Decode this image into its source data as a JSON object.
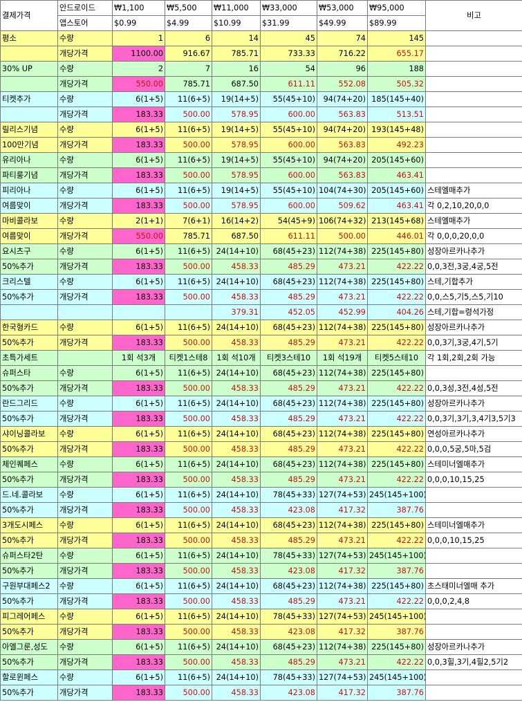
{
  "header": {
    "label": "결제가격",
    "android_label": "안드로이드",
    "appstore_label": "앱스토어",
    "note_label": "비고",
    "won": [
      "₩1,100",
      "₩5,500",
      "₩11,000",
      "₩33,000",
      "₩53,000",
      "₩95,000"
    ],
    "usd": [
      "$0.99",
      "$4.99",
      "$10.99",
      "$31.99",
      "$49.99",
      "$89.99"
    ]
  },
  "colors": {
    "yellow": "#ffff99",
    "green": "#ccffcc",
    "cyan": "#ccffff",
    "pink": "#ff66cc",
    "red_text": "#cc1111"
  },
  "rows": [
    {
      "a": "평소",
      "b": "수량",
      "bg": "y",
      "v": [
        "1",
        "6",
        "14",
        "45",
        "74",
        "145"
      ],
      "red": [
        false,
        false,
        false,
        false,
        false,
        false
      ],
      "note": ""
    },
    {
      "a": "",
      "b": "개당가격",
      "bg": "y",
      "v": [
        "1100.00",
        "916.67",
        "785.71",
        "733.33",
        "716.22",
        "655.17"
      ],
      "red": [
        false,
        false,
        false,
        false,
        false,
        true
      ],
      "note": ""
    },
    {
      "a": "30% UP",
      "b": "수량",
      "bg": "g",
      "v": [
        "2",
        "7",
        "16",
        "54",
        "96",
        "188"
      ],
      "red": [
        false,
        false,
        false,
        false,
        false,
        false
      ],
      "note": ""
    },
    {
      "a": "",
      "b": "개당가격",
      "bg": "g",
      "v": [
        "550.00",
        "785.71",
        "687.50",
        "611.11",
        "552.08",
        "505.32"
      ],
      "red": [
        true,
        false,
        false,
        true,
        true,
        true
      ],
      "note": ""
    },
    {
      "a": "티켓추가",
      "b": "수량",
      "bg": "c",
      "v": [
        "6(1+5)",
        "11(6+5)",
        "19(14+5)",
        "55(45+10)",
        "94(74+20)",
        "185(145+40)"
      ],
      "red": [
        false,
        false,
        false,
        false,
        false,
        false
      ],
      "note": ""
    },
    {
      "a": "",
      "b": "개당가격",
      "bg": "c",
      "v": [
        "183.33",
        "500.00",
        "578.95",
        "600.00",
        "563.83",
        "513.51"
      ],
      "red": [
        false,
        true,
        true,
        true,
        true,
        true
      ],
      "note": ""
    },
    {
      "a": "릴리스기념",
      "b": "수량",
      "bg": "y",
      "v": [
        "6(1+5)",
        "11(6+5)",
        "19(14+5)",
        "55(45+10)",
        "94(74+20)",
        "193(145+48)"
      ],
      "red": [
        false,
        false,
        false,
        false,
        false,
        false
      ],
      "note": ""
    },
    {
      "a": "100만기념",
      "b": "개당가격",
      "bg": "y",
      "v": [
        "183.33",
        "500.00",
        "578.95",
        "600.00",
        "563.83",
        "492.23"
      ],
      "red": [
        false,
        true,
        true,
        true,
        true,
        true
      ],
      "note": ""
    },
    {
      "a": "유리아나",
      "b": "수량",
      "bg": "g",
      "v": [
        "6(1+5)",
        "11(6+5)",
        "19(14+5)",
        "55(45+10)",
        "94(74+20)",
        "205(145+60)"
      ],
      "red": [
        false,
        false,
        false,
        false,
        false,
        false
      ],
      "note": ""
    },
    {
      "a": "파티룽기념",
      "b": "개당가격",
      "bg": "g",
      "v": [
        "183.33",
        "500.00",
        "578.95",
        "600.00",
        "563.83",
        "463.41"
      ],
      "red": [
        false,
        true,
        true,
        true,
        true,
        true
      ],
      "note": ""
    },
    {
      "a": "피리아나",
      "b": "수량",
      "bg": "c",
      "v": [
        "6(1+5)",
        "11(6+5)",
        "19(14+5)",
        "55(45+10)",
        "104(74+30)",
        "205(145+60)"
      ],
      "red": [
        false,
        false,
        false,
        false,
        false,
        false
      ],
      "note": "스테엘매추가"
    },
    {
      "a": "여름맞이",
      "b": "개당가격",
      "bg": "c",
      "v": [
        "183.33",
        "500.00",
        "578.95",
        "600.00",
        "509.62",
        "463.41"
      ],
      "red": [
        false,
        true,
        true,
        true,
        true,
        true
      ],
      "note": "각 0,2,10,20,0,0"
    },
    {
      "a": "마비콜라보",
      "b": "수량",
      "bg": "y",
      "v": [
        "2(1+1)",
        "7(6+1)",
        "16(14+2)",
        "54(45+9)",
        "106(74+32)",
        "213(145+68)"
      ],
      "red": [
        false,
        false,
        false,
        false,
        false,
        false
      ],
      "note": "스테엘매추가"
    },
    {
      "a": "여름맞이",
      "b": "개당가격",
      "bg": "y",
      "v": [
        "550.00",
        "785.71",
        "687.50",
        "611.11",
        "500.00",
        "446.01"
      ],
      "red": [
        true,
        false,
        false,
        true,
        true,
        true
      ],
      "note": "각 0,0,0,20,0,0"
    },
    {
      "a": "요시츠구",
      "b": "수량",
      "bg": "g",
      "v": [
        "6(1+5)",
        "11(6+5)",
        "24(14+10)",
        "68(45+23)",
        "112(74+38)",
        "225(145+80)"
      ],
      "red": [
        false,
        false,
        false,
        false,
        false,
        false
      ],
      "note": "성장아르카나추가"
    },
    {
      "a": "50%추가",
      "b": "개당가격",
      "bg": "g",
      "v": [
        "183.33",
        "500.00",
        "458.33",
        "485.29",
        "473.21",
        "422.22"
      ],
      "red": [
        false,
        true,
        true,
        true,
        true,
        true
      ],
      "note": "0,0,3전,3궁,4궁,5전"
    },
    {
      "a": "크리스텔",
      "b": "수량",
      "bg": "c",
      "v": [
        "6(1+5)",
        "11(6+5)",
        "24(14+10)",
        "68(45+23)",
        "112(74+38)",
        "225(145+80)"
      ],
      "red": [
        false,
        false,
        false,
        false,
        false,
        false
      ],
      "note": "스테,기합추가"
    },
    {
      "a": "50%추가",
      "b": "개당가격",
      "bg": "c",
      "v": [
        "183.33",
        "500.00",
        "458.33",
        "485.29",
        "473.21",
        "422.22"
      ],
      "red": [
        false,
        true,
        true,
        true,
        true,
        true
      ],
      "note": "0,0,스5,기5,스5,기10"
    },
    {
      "a": "",
      "b": "",
      "bg": "c",
      "v": [
        "",
        "",
        "379.31",
        "452.05",
        "452.99",
        "404.26"
      ],
      "red": [
        false,
        false,
        true,
        true,
        true,
        true
      ],
      "note": "스테,기합=령석가정"
    },
    {
      "a": "한국형카드",
      "b": "수량",
      "bg": "y",
      "v": [
        "6(1+5)",
        "11(6+5)",
        "24(14+10)",
        "68(45+23)",
        "112(74+38)",
        "225(145+80)"
      ],
      "red": [
        false,
        false,
        false,
        false,
        false,
        false
      ],
      "note": "성장아르카나추가"
    },
    {
      "a": "50%추가",
      "b": "개당가격",
      "bg": "y",
      "v": [
        "183.33",
        "500.00",
        "458.33",
        "485.29",
        "473.21",
        "422.22"
      ],
      "red": [
        false,
        true,
        true,
        true,
        true,
        true
      ],
      "note": "0,0,3기,3궁,4기,5기"
    },
    {
      "a": "초특가세트",
      "b": "",
      "bg": "g",
      "ctr": true,
      "v": [
        "1회 석3개",
        "티켓1스테8",
        "1회 석10개",
        "티켓3스테10",
        "1회 석19개",
        "티켓5스테10"
      ],
      "red": [
        false,
        false,
        false,
        false,
        false,
        false
      ],
      "note": "각 1회,2회,2회 가능"
    },
    {
      "a": "슈퍼스타",
      "b": "수량",
      "bg": "g",
      "v": [
        "6(1+5)",
        "11(6+5)",
        "24(14+10)",
        "68(45+23)",
        "112(74+38)",
        "225(145+80)"
      ],
      "red": [
        false,
        false,
        false,
        false,
        false,
        false
      ],
      "note": ""
    },
    {
      "a": "50%추가",
      "b": "개당가격",
      "bg": "g",
      "v": [
        "183.33",
        "500.00",
        "458.33",
        "485.29",
        "473.21",
        "422.22"
      ],
      "red": [
        false,
        true,
        true,
        true,
        true,
        true
      ],
      "note": "0,0,3성,3전,4성,5전"
    },
    {
      "a": "란드그리드",
      "b": "수량",
      "bg": "c",
      "v": [
        "6(1+5)",
        "11(6+5)",
        "24(14+10)",
        "68(45+23)",
        "112(74+38)",
        "225(145+80)"
      ],
      "red": [
        false,
        false,
        false,
        false,
        false,
        false
      ],
      "note": "성장아르카나추가"
    },
    {
      "a": "50%추가",
      "b": "개당가격",
      "bg": "c",
      "v": [
        "183.33",
        "500.00",
        "458.33",
        "485.29",
        "473.21",
        "422.22"
      ],
      "red": [
        false,
        true,
        true,
        true,
        true,
        true
      ],
      "note": "0,0,3기,3기,3,4기3,5기3"
    },
    {
      "a": "샤이닝콜라보",
      "b": "수량",
      "bg": "y",
      "v": [
        "6(1+5)",
        "11(6+5)",
        "24(14+10)",
        "68(45+23)",
        "112(74+38)",
        "225(145+80)"
      ],
      "red": [
        false,
        false,
        false,
        false,
        false,
        false
      ],
      "note": "연성아르카나추가"
    },
    {
      "a": "50%추가",
      "b": "개당가격",
      "bg": "y",
      "v": [
        "183.33",
        "500.00",
        "458.33",
        "485.29",
        "473.21",
        "422.22"
      ],
      "red": [
        false,
        true,
        true,
        true,
        true,
        true
      ],
      "note": "0,0,0,5궁,5마,5검"
    },
    {
      "a": "체인퀘페스",
      "b": "수량",
      "bg": "g",
      "v": [
        "6(1+5)",
        "11(6+5)",
        "24(14+10)",
        "68(45+23)",
        "112(74+38)",
        "225(145+80)"
      ],
      "red": [
        false,
        false,
        false,
        false,
        false,
        false
      ],
      "note": "스테미너엘매추가"
    },
    {
      "a": "50%추가",
      "b": "개당가격",
      "bg": "g",
      "v": [
        "183.33",
        "500.00",
        "458.33",
        "485.29",
        "473.21",
        "422.22"
      ],
      "red": [
        false,
        true,
        true,
        true,
        true,
        true
      ],
      "note": "0,0,0,10,15,25"
    },
    {
      "a": "드.네.콜라보",
      "b": "수량",
      "bg": "c",
      "v": [
        "6(1+5)",
        "11(6+5)",
        "24(14+10)",
        "78(45+33)",
        "127(74+53)",
        "245(145+100)"
      ],
      "red": [
        false,
        false,
        false,
        false,
        false,
        false
      ],
      "note": ""
    },
    {
      "a": "50%추가",
      "b": "개당가격",
      "bg": "c",
      "v": [
        "183.33",
        "500.00",
        "458.33",
        "423.08",
        "417.32",
        "387.76"
      ],
      "red": [
        false,
        true,
        true,
        true,
        true,
        true
      ],
      "note": ""
    },
    {
      "a": "3개도시페스",
      "b": "수량",
      "bg": "y",
      "v": [
        "6(1+5)",
        "11(6+5)",
        "24(14+10)",
        "68(45+23)",
        "112(74+38)",
        "225(145+80)"
      ],
      "red": [
        false,
        false,
        false,
        false,
        false,
        false
      ],
      "note": "스테미너엘매추가"
    },
    {
      "a": "50%추가",
      "b": "개당가격",
      "bg": "y",
      "v": [
        "183.33",
        "500.00",
        "458.33",
        "485.29",
        "473.21",
        "422.22"
      ],
      "red": [
        false,
        true,
        true,
        true,
        true,
        true
      ],
      "note": "0,0,0,10,15,25"
    },
    {
      "a": "슈퍼스타2탄",
      "b": "수량",
      "bg": "g",
      "v": [
        "6(1+5)",
        "11(6+5)",
        "24(14+10)",
        "78(45+33)",
        "127(74+53)",
        "245(145+100)"
      ],
      "red": [
        false,
        false,
        false,
        false,
        false,
        false
      ],
      "note": ""
    },
    {
      "a": "50%추가",
      "b": "개당가격",
      "bg": "g",
      "v": [
        "183.33",
        "500.00",
        "458.33",
        "423.08",
        "417.32",
        "387.76"
      ],
      "red": [
        false,
        true,
        true,
        true,
        true,
        true
      ],
      "note": ""
    },
    {
      "a": "구원부대페스2",
      "b": "수량",
      "bg": "c",
      "v": [
        "6(1+5)",
        "11(6+5)",
        "24(14+10)",
        "68(45+23)",
        "112(74+38)",
        "225(145+80)"
      ],
      "red": [
        false,
        false,
        false,
        false,
        false,
        false
      ],
      "note": "초스태미너엘매 추가"
    },
    {
      "a": "50%추가",
      "b": "개당가격",
      "bg": "c",
      "v": [
        "183.33",
        "500.00",
        "458.33",
        "485.29",
        "473.21",
        "422.22"
      ],
      "red": [
        false,
        true,
        true,
        true,
        true,
        true
      ],
      "note": "0,0,0,2,4,8"
    },
    {
      "a": "피그레어페스",
      "b": "수량",
      "bg": "y",
      "v": [
        "6(1+5)",
        "11(6+5)",
        "24(14+10)",
        "78(45+33)",
        "127(74+53)",
        "245(145+100)"
      ],
      "red": [
        false,
        false,
        false,
        false,
        false,
        false
      ],
      "note": ""
    },
    {
      "a": "50%추가",
      "b": "개당가격",
      "bg": "y",
      "v": [
        "183.33",
        "500.00",
        "458.33",
        "423.08",
        "417.32",
        "387.76"
      ],
      "red": [
        false,
        true,
        true,
        true,
        true,
        true
      ],
      "note": ""
    },
    {
      "a": "아엘그룬,성도",
      "b": "수량",
      "bg": "g",
      "v": [
        "6(1+5)",
        "11(6+5)",
        "24(14+10)",
        "68(45+23)",
        "112(74+38)",
        "225(145+80)"
      ],
      "red": [
        false,
        false,
        false,
        false,
        false,
        false
      ],
      "note": "성장아르카나추가"
    },
    {
      "a": "50%추가",
      "b": "개당가격",
      "bg": "g",
      "v": [
        "183.33",
        "500.00",
        "458.33",
        "485.29",
        "473.21",
        "422.22"
      ],
      "red": [
        false,
        true,
        true,
        true,
        true,
        true
      ],
      "note": "0,0,3힐,3기,4힐2,5기2"
    },
    {
      "a": "할로윈페스",
      "b": "수량",
      "bg": "c",
      "v": [
        "6(1+5)",
        "11(6+5)",
        "24(14+10)",
        "78(45+33)",
        "127(74+53)",
        "245(145+100)"
      ],
      "red": [
        false,
        false,
        false,
        false,
        false,
        false
      ],
      "note": ""
    },
    {
      "a": "50%추가",
      "b": "개당가격",
      "bg": "c",
      "v": [
        "183.33",
        "500.00",
        "458.33",
        "423.08",
        "417.32",
        "387.76"
      ],
      "red": [
        false,
        true,
        true,
        true,
        true,
        true
      ],
      "note": ""
    }
  ]
}
